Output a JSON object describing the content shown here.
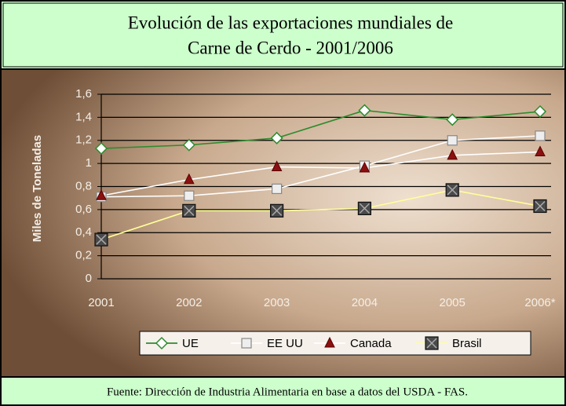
{
  "chart_data": {
    "type": "line",
    "title": [
      "Evolución de las exportaciones mundiales de",
      "Carne de Cerdo - 2001/2006"
    ],
    "y_label": "Miles de Toneladas",
    "source": "Fuente: Dirección de Industria Alimentaria en base a datos del USDA - FAS.",
    "categories": [
      "2001",
      "2002",
      "2003",
      "2004",
      "2005",
      "2006*"
    ],
    "series": [
      {
        "name": "UE",
        "color": "#2e8b2e",
        "marker": "diamond",
        "values": [
          1.13,
          1.16,
          1.22,
          1.46,
          1.38,
          1.45
        ]
      },
      {
        "name": "EE UU",
        "color": "#ffffff",
        "marker": "square",
        "values": [
          0.71,
          0.72,
          0.78,
          0.98,
          1.2,
          1.24
        ]
      },
      {
        "name": "Canada",
        "color": "#ffffff",
        "marker": "triangle",
        "values": [
          0.72,
          0.86,
          0.97,
          0.96,
          1.07,
          1.1
        ]
      },
      {
        "name": "Brasil",
        "color": "#ffff99",
        "marker": "xbox",
        "values": [
          0.34,
          0.59,
          0.59,
          0.61,
          0.77,
          0.63
        ]
      }
    ],
    "ylim": [
      0,
      1.6
    ],
    "yticks": [
      0,
      {
        "value": 0.2,
        "label": "0,2"
      },
      {
        "value": 0.4,
        "label": "0,4"
      },
      {
        "value": 0.6,
        "label": "0,6"
      },
      {
        "value": 0.8,
        "label": "0,8"
      },
      1,
      {
        "value": 1.2,
        "label": "1,2"
      },
      {
        "value": 1.4,
        "label": "1,4"
      },
      {
        "value": 1.6,
        "label": "1,6"
      }
    ],
    "grid": true,
    "legend": "bottom"
  }
}
